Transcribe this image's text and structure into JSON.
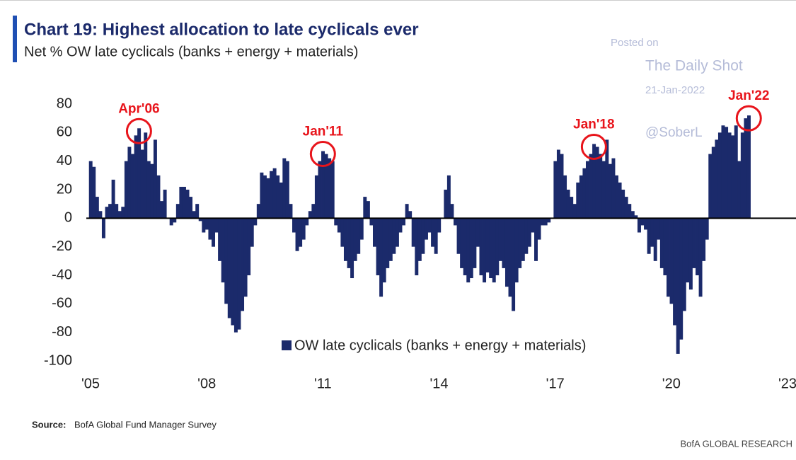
{
  "chart_data": {
    "type": "bar",
    "title": "Chart 19: Highest allocation to late cyclicals ever",
    "subtitle": "Net % OW late cyclicals (banks + energy + materials)",
    "legend": "OW late cyclicals (banks + energy + materials)",
    "color": "#1b2a6b",
    "xlim": [
      2005,
      2023
    ],
    "xticks": [
      {
        "value": 2005,
        "label": "'05"
      },
      {
        "value": 2008,
        "label": "'08"
      },
      {
        "value": 2011,
        "label": "'11"
      },
      {
        "value": 2014,
        "label": "'14"
      },
      {
        "value": 2017,
        "label": "'17"
      },
      {
        "value": 2020,
        "label": "'20"
      },
      {
        "value": 2023,
        "label": "'23"
      }
    ],
    "ylim": [
      -100,
      80
    ],
    "yticks": [
      80,
      60,
      40,
      20,
      0,
      -20,
      -40,
      -60,
      -80,
      -100
    ],
    "x": [
      2005,
      2005.083,
      2005.167,
      2005.25,
      2005.333,
      2005.417,
      2005.5,
      2005.583,
      2005.667,
      2005.75,
      2005.833,
      2005.917,
      2006,
      2006.083,
      2006.167,
      2006.25,
      2006.333,
      2006.417,
      2006.5,
      2006.583,
      2006.667,
      2006.75,
      2006.833,
      2006.917,
      2007,
      2007.083,
      2007.167,
      2007.25,
      2007.333,
      2007.417,
      2007.5,
      2007.583,
      2007.667,
      2007.75,
      2007.833,
      2007.917,
      2008,
      2008.083,
      2008.167,
      2008.25,
      2008.333,
      2008.417,
      2008.5,
      2008.583,
      2008.667,
      2008.75,
      2008.833,
      2008.917,
      2009,
      2009.083,
      2009.167,
      2009.25,
      2009.333,
      2009.417,
      2009.5,
      2009.583,
      2009.667,
      2009.75,
      2009.833,
      2009.917,
      2010,
      2010.083,
      2010.167,
      2010.25,
      2010.333,
      2010.417,
      2010.5,
      2010.583,
      2010.667,
      2010.75,
      2010.833,
      2010.917,
      2011,
      2011.083,
      2011.167,
      2011.25,
      2011.333,
      2011.417,
      2011.5,
      2011.583,
      2011.667,
      2011.75,
      2011.833,
      2011.917,
      2012,
      2012.083,
      2012.167,
      2012.25,
      2012.333,
      2012.417,
      2012.5,
      2012.583,
      2012.667,
      2012.75,
      2012.833,
      2012.917,
      2013,
      2013.083,
      2013.167,
      2013.25,
      2013.333,
      2013.417,
      2013.5,
      2013.583,
      2013.667,
      2013.75,
      2013.833,
      2013.917,
      2014,
      2014.083,
      2014.167,
      2014.25,
      2014.333,
      2014.417,
      2014.5,
      2014.583,
      2014.667,
      2014.75,
      2014.833,
      2014.917,
      2015,
      2015.083,
      2015.167,
      2015.25,
      2015.333,
      2015.417,
      2015.5,
      2015.583,
      2015.667,
      2015.75,
      2015.833,
      2015.917,
      2016,
      2016.083,
      2016.167,
      2016.25,
      2016.333,
      2016.417,
      2016.5,
      2016.583,
      2016.667,
      2016.75,
      2016.833,
      2016.917,
      2017,
      2017.083,
      2017.167,
      2017.25,
      2017.333,
      2017.417,
      2017.5,
      2017.583,
      2017.667,
      2017.75,
      2017.833,
      2017.917,
      2018,
      2018.083,
      2018.167,
      2018.25,
      2018.333,
      2018.417,
      2018.5,
      2018.583,
      2018.667,
      2018.75,
      2018.833,
      2018.917,
      2019,
      2019.083,
      2019.167,
      2019.25,
      2019.333,
      2019.417,
      2019.5,
      2019.583,
      2019.667,
      2019.75,
      2019.833,
      2019.917,
      2020,
      2020.083,
      2020.167,
      2020.25,
      2020.333,
      2020.417,
      2020.5,
      2020.583,
      2020.667,
      2020.75,
      2020.833,
      2020.917,
      2021,
      2021.083,
      2021.167,
      2021.25,
      2021.333,
      2021.417,
      2021.5,
      2021.583,
      2021.667,
      2021.75,
      2021.833,
      2021.917,
      2022
    ],
    "values": [
      40,
      36,
      15,
      5,
      -14,
      8,
      10,
      27,
      10,
      5,
      8,
      40,
      50,
      45,
      58,
      63,
      48,
      60,
      40,
      38,
      55,
      30,
      12,
      20,
      0,
      -5,
      -3,
      10,
      22,
      22,
      20,
      15,
      5,
      10,
      -2,
      -10,
      -8,
      -15,
      -20,
      -10,
      -30,
      -45,
      -60,
      -70,
      -75,
      -80,
      -78,
      -65,
      -55,
      -40,
      -20,
      -5,
      10,
      32,
      30,
      28,
      33,
      35,
      30,
      25,
      42,
      40,
      10,
      -10,
      -23,
      -20,
      -15,
      -5,
      5,
      10,
      30,
      40,
      47,
      45,
      42,
      40,
      -5,
      -10,
      -20,
      -30,
      -35,
      -42,
      -30,
      -25,
      -15,
      15,
      12,
      -5,
      -20,
      -40,
      -55,
      -45,
      -35,
      -30,
      -25,
      -20,
      -10,
      -5,
      10,
      5,
      -20,
      -40,
      -30,
      -25,
      -15,
      -10,
      -20,
      -25,
      -10,
      0,
      20,
      30,
      10,
      -5,
      -25,
      -35,
      -40,
      -45,
      -42,
      -35,
      -20,
      -40,
      -45,
      -38,
      -42,
      -45,
      -40,
      -30,
      -35,
      -48,
      -55,
      -65,
      -45,
      -35,
      -30,
      -25,
      -20,
      -10,
      -30,
      -15,
      -5,
      -5,
      -3,
      0,
      40,
      48,
      45,
      30,
      20,
      15,
      10,
      25,
      30,
      35,
      40,
      45,
      52,
      50,
      45,
      40,
      55,
      38,
      42,
      30,
      25,
      20,
      15,
      10,
      5,
      2,
      -10,
      -5,
      -8,
      -25,
      -20,
      -30,
      -15,
      -35,
      -40,
      -55,
      -60,
      -75,
      -95,
      -85,
      -65,
      -45,
      -50,
      -35,
      -40,
      -55,
      -30,
      -15,
      45,
      50,
      55,
      60,
      65,
      64,
      60,
      58,
      65,
      40,
      60,
      70,
      72
    ],
    "annotations": [
      {
        "text": "Apr'06",
        "x": 2006.25,
        "y": 63
      },
      {
        "text": "Jan'11",
        "x": 2011,
        "y": 47
      },
      {
        "text": "Jan'18",
        "x": 2018,
        "y": 52
      },
      {
        "text": "Jan'22",
        "x": 2022,
        "y": 72
      }
    ],
    "watermark": [
      "Posted on",
      "The Daily Shot",
      "21-Jan-2022",
      "@SoberL"
    ],
    "source_label": "Source:",
    "source": "BofA Global Fund Manager Survey",
    "footer": "BofA GLOBAL RESEARCH"
  }
}
